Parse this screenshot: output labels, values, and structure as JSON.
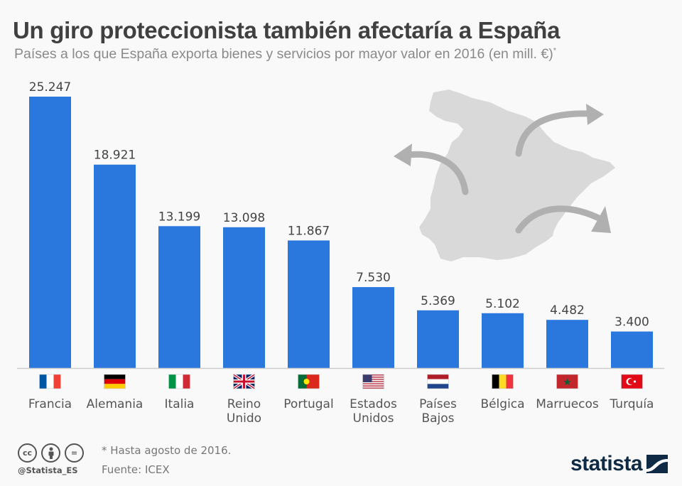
{
  "header": {
    "title": "Un giro proteccionista también afectaría a España",
    "subtitle": "Países a los que España exporta bienes y servicios por mayor valor en 2016 (en mill. €)",
    "subtitle_mark": "*"
  },
  "colors": {
    "bar": "#2a77dd",
    "map": "#d9d9d9",
    "arrows": "#b0b0b0",
    "baseline": "#cccccc",
    "brand": "#0f2a44"
  },
  "chart_data": {
    "type": "bar",
    "title": "Un giro proteccionista también afectaría a España",
    "subtitle": "Países a los que España exporta bienes y servicios por mayor valor en 2016 (en mill. €)*",
    "xlabel": "",
    "ylabel": "",
    "categories": [
      "Francia",
      "Alemania",
      "Italia",
      "Reino Unido",
      "Portugal",
      "Estados Unidos",
      "Países Bajos",
      "Bélgica",
      "Marruecos",
      "Turquía"
    ],
    "category_lines": [
      [
        "Francia"
      ],
      [
        "Alemania"
      ],
      [
        "Italia"
      ],
      [
        "Reino",
        "Unido"
      ],
      [
        "Portugal"
      ],
      [
        "Estados",
        "Unidos"
      ],
      [
        "Países",
        "Bajos"
      ],
      [
        "Bélgica"
      ],
      [
        "Marruecos"
      ],
      [
        "Turquía"
      ]
    ],
    "flags": [
      "france-flag",
      "germany-flag",
      "italy-flag",
      "uk-flag",
      "portugal-flag",
      "usa-flag",
      "netherlands-flag",
      "belgium-flag",
      "morocco-flag",
      "turkey-flag"
    ],
    "values": [
      25247,
      18921,
      13199,
      13098,
      11867,
      7530,
      5369,
      5102,
      4482,
      3400
    ],
    "value_labels": [
      "25.247",
      "18.921",
      "13.199",
      "13.098",
      "11.867",
      "7.530",
      "5.369",
      "5.102",
      "4.482",
      "3.400"
    ],
    "ylim": [
      0,
      25247
    ],
    "grid": false,
    "legend": "none"
  },
  "footer": {
    "note": "* Hasta agosto de 2016.",
    "source": "Fuente: ICEX",
    "handle": "@Statista_ES",
    "license_icons": [
      "cc-icon",
      "attribution-icon",
      "no-derivatives-icon"
    ],
    "license_glyphs": [
      "cc",
      "",
      "="
    ],
    "brand": "statista"
  }
}
